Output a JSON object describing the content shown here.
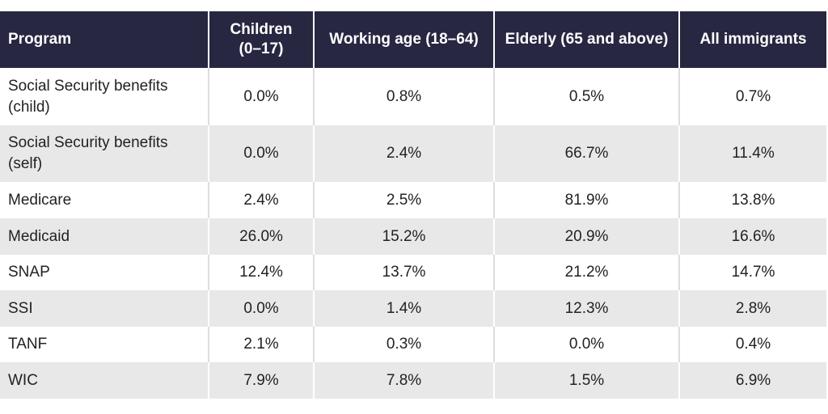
{
  "table": {
    "header": [
      "Program",
      "Children (0–17)",
      "Working age (18–64)",
      "Elderly (65 and above)",
      "All immigrants"
    ],
    "rows": [
      [
        "Social Security benefits (child)",
        "0.0%",
        "0.8%",
        "0.5%",
        "0.7%"
      ],
      [
        "Social Security benefits (self)",
        "0.0%",
        "2.4%",
        "66.7%",
        "11.4%"
      ],
      [
        "Medicare",
        "2.4%",
        "2.5%",
        "81.9%",
        "13.8%"
      ],
      [
        "Medicaid",
        "26.0%",
        "15.2%",
        "20.9%",
        "16.6%"
      ],
      [
        "SNAP",
        "12.4%",
        "13.7%",
        "21.2%",
        "14.7%"
      ],
      [
        "SSI",
        "0.0%",
        "1.4%",
        "12.3%",
        "2.8%"
      ],
      [
        "TANF",
        "2.1%",
        "0.3%",
        "0.0%",
        "0.4%"
      ],
      [
        "WIC",
        "7.9%",
        "7.8%",
        "1.5%",
        "6.9%"
      ]
    ]
  }
}
